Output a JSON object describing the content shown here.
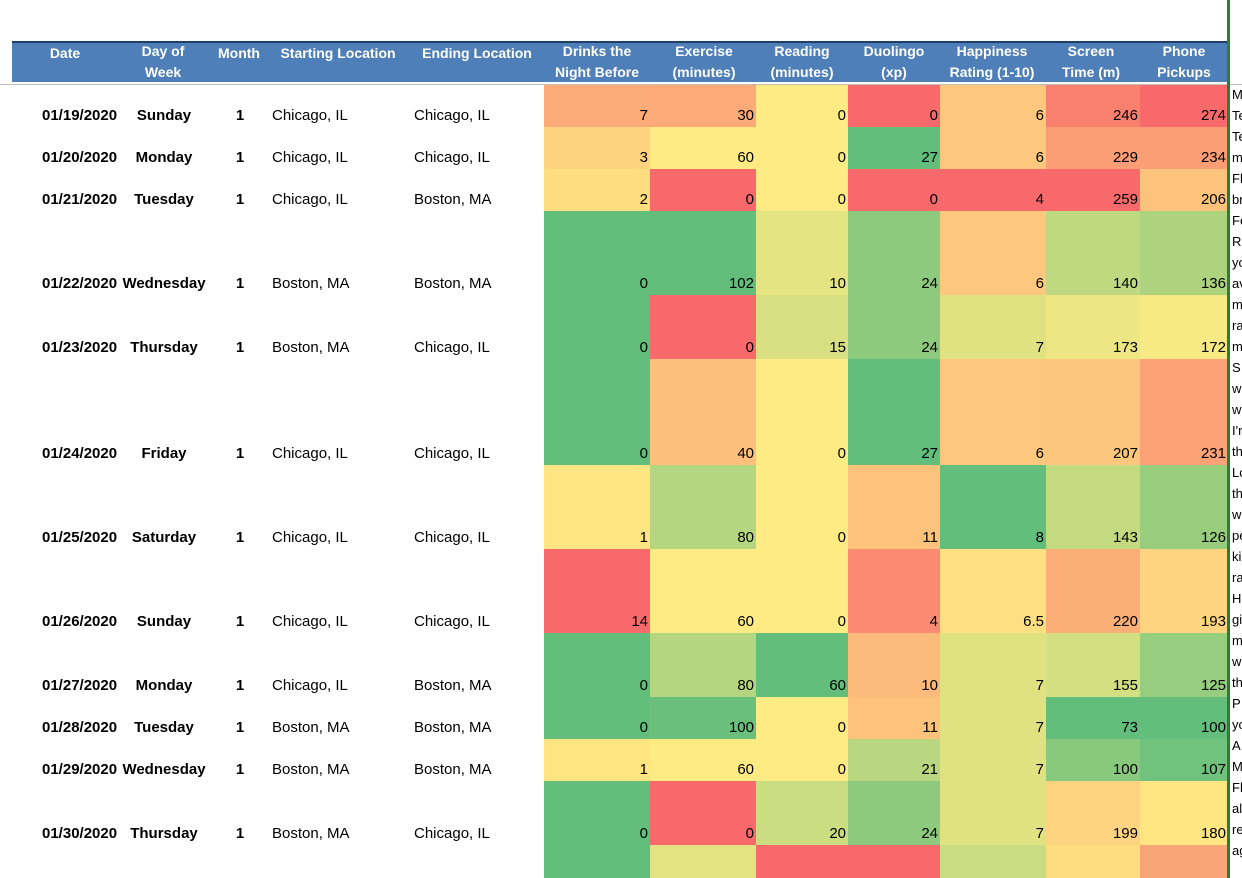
{
  "headers": {
    "date": [
      "",
      "Date"
    ],
    "day": [
      "Day of",
      "Week"
    ],
    "month": [
      "",
      "Month"
    ],
    "start": [
      "",
      "Starting Location"
    ],
    "end": [
      "",
      "Ending Location"
    ],
    "drinks": [
      "Drinks the",
      "Night Before"
    ],
    "exercise": [
      "Exercise",
      "(minutes)"
    ],
    "reading": [
      "Reading",
      "(minutes)"
    ],
    "duolingo": [
      "Duolingo",
      "(xp)"
    ],
    "happiness": [
      "Happiness",
      "Rating (1-10)"
    ],
    "screen": [
      "Screen",
      "Time (m)"
    ],
    "pickups": [
      "Phone",
      "Pickups"
    ]
  },
  "colors": {
    "header_bg": "#4f7fb8",
    "scale_green": "#63be7b",
    "scale_yellow": "#ffeb84",
    "scale_red": "#f8696b"
  },
  "rows": [
    {
      "date": "01/19/2020",
      "day": "Sunday",
      "month": "1",
      "start": "Chicago, IL",
      "end": "Chicago, IL",
      "drinks": "7",
      "exercise": "30",
      "reading": "0",
      "duolingo": "0",
      "happiness": "6",
      "screen": "246",
      "pickups": "274"
    },
    {
      "date": "01/20/2020",
      "day": "Monday",
      "month": "1",
      "start": "Chicago, IL",
      "end": "Chicago, IL",
      "drinks": "3",
      "exercise": "60",
      "reading": "0",
      "duolingo": "27",
      "happiness": "6",
      "screen": "229",
      "pickups": "234"
    },
    {
      "date": "01/21/2020",
      "day": "Tuesday",
      "month": "1",
      "start": "Chicago, IL",
      "end": "Boston, MA",
      "drinks": "2",
      "exercise": "0",
      "reading": "0",
      "duolingo": "0",
      "happiness": "4",
      "screen": "259",
      "pickups": "206"
    },
    {
      "date": "01/22/2020",
      "day": "Wednesday",
      "month": "1",
      "start": "Boston, MA",
      "end": "Boston, MA",
      "drinks": "0",
      "exercise": "102",
      "reading": "10",
      "duolingo": "24",
      "happiness": "6",
      "screen": "140",
      "pickups": "136"
    },
    {
      "date": "01/23/2020",
      "day": "Thursday",
      "month": "1",
      "start": "Boston, MA",
      "end": "Chicago, IL",
      "drinks": "0",
      "exercise": "0",
      "reading": "15",
      "duolingo": "24",
      "happiness": "7",
      "screen": "173",
      "pickups": "172"
    },
    {
      "date": "01/24/2020",
      "day": "Friday",
      "month": "1",
      "start": "Chicago, IL",
      "end": "Chicago, IL",
      "drinks": "0",
      "exercise": "40",
      "reading": "0",
      "duolingo": "27",
      "happiness": "6",
      "screen": "207",
      "pickups": "231"
    },
    {
      "date": "01/25/2020",
      "day": "Saturday",
      "month": "1",
      "start": "Chicago, IL",
      "end": "Chicago, IL",
      "drinks": "1",
      "exercise": "80",
      "reading": "0",
      "duolingo": "11",
      "happiness": "8",
      "screen": "143",
      "pickups": "126"
    },
    {
      "date": "01/26/2020",
      "day": "Sunday",
      "month": "1",
      "start": "Chicago, IL",
      "end": "Chicago, IL",
      "drinks": "14",
      "exercise": "60",
      "reading": "0",
      "duolingo": "4",
      "happiness": "6.5",
      "screen": "220",
      "pickups": "193"
    },
    {
      "date": "01/27/2020",
      "day": "Monday",
      "month": "1",
      "start": "Chicago, IL",
      "end": "Boston, MA",
      "drinks": "0",
      "exercise": "80",
      "reading": "60",
      "duolingo": "10",
      "happiness": "7",
      "screen": "155",
      "pickups": "125"
    },
    {
      "date": "01/28/2020",
      "day": "Tuesday",
      "month": "1",
      "start": "Boston, MA",
      "end": "Boston, MA",
      "drinks": "0",
      "exercise": "100",
      "reading": "0",
      "duolingo": "11",
      "happiness": "7",
      "screen": "73",
      "pickups": "100"
    },
    {
      "date": "01/29/2020",
      "day": "Wednesday",
      "month": "1",
      "start": "Boston, MA",
      "end": "Boston, MA",
      "drinks": "1",
      "exercise": "60",
      "reading": "0",
      "duolingo": "21",
      "happiness": "7",
      "screen": "100",
      "pickups": "107"
    },
    {
      "date": "01/30/2020",
      "day": "Thursday",
      "month": "1",
      "start": "Boston, MA",
      "end": "Chicago, IL",
      "drinks": "0",
      "exercise": "0",
      "reading": "20",
      "duolingo": "24",
      "happiness": "7",
      "screen": "199",
      "pickups": "180"
    }
  ],
  "next_row_colors": [
    "#63be7b",
    "#e3e384",
    "#f8696b",
    "#f8696b",
    "#c9dc81",
    "#fedd81",
    "#f8a677"
  ],
  "notes_clipped": [
    "M",
    "Te",
    "Te",
    "m",
    "Fl",
    "br",
    "Fo",
    "R",
    "yo",
    "av",
    "m",
    "ra",
    "m",
    "S",
    "w",
    "w",
    "I'r",
    "th",
    "Lo",
    "th",
    "w",
    "pe",
    "ki",
    "ra",
    "H",
    "gi",
    "m",
    "w",
    "th",
    "P",
    "yo",
    "A",
    "M",
    "Fl",
    "al",
    "re",
    "ag"
  ]
}
